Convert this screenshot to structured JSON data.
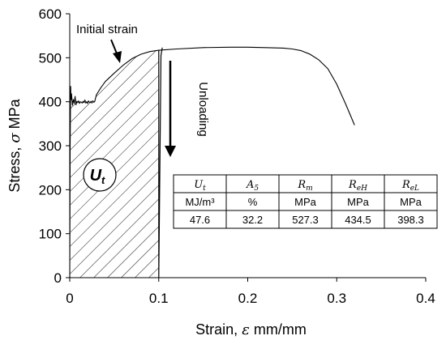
{
  "chart_data": {
    "type": "line",
    "xlabel_prefix": "Strain, ",
    "xlabel_symbol": "ε",
    "xlabel_suffix": " mm/mm",
    "ylabel_prefix": "Stress, ",
    "ylabel_symbol": "σ",
    "ylabel_suffix": " MPa",
    "xlim": [
      0,
      0.4
    ],
    "ylim": [
      0,
      600
    ],
    "xticks": [
      "0",
      "0.1",
      "0.2",
      "0.3",
      "0.4"
    ],
    "yticks": [
      "0",
      "100",
      "200",
      "300",
      "400",
      "500",
      "600"
    ],
    "grid": false,
    "series": [
      {
        "x": [
          0.0,
          0.0005,
          0.001,
          0.0015,
          0.002,
          0.003,
          0.004,
          0.005,
          0.006,
          0.007,
          0.008,
          0.009,
          0.01,
          0.011,
          0.012,
          0.013,
          0.014,
          0.015,
          0.016,
          0.017,
          0.018,
          0.019,
          0.02,
          0.021,
          0.022,
          0.023,
          0.024,
          0.025,
          0.026,
          0.027,
          0.028,
          0.03,
          0.035,
          0.04,
          0.05,
          0.06,
          0.07,
          0.08,
          0.09,
          0.1,
          0.12,
          0.15,
          0.18,
          0.2,
          0.22,
          0.24,
          0.25,
          0.26,
          0.27,
          0.28,
          0.29,
          0.3,
          0.31,
          0.32
        ],
        "y": [
          0,
          300,
          435,
          405,
          418,
          392,
          405,
          396,
          412,
          393,
          401,
          398,
          402,
          396,
          400,
          399,
          397,
          401,
          398,
          404,
          397,
          400,
          396,
          402,
          399,
          398,
          401,
          397,
          402,
          399,
          400,
          416,
          432,
          446,
          465,
          483,
          498,
          508,
          514,
          517,
          520,
          523,
          524,
          524,
          523,
          522,
          520,
          516,
          508,
          495,
          475,
          440,
          395,
          347
        ]
      },
      {
        "x": [
          0.1,
          0.1,
          0.1025,
          0.104
        ],
        "y": [
          517,
          0,
          505,
          523
        ]
      }
    ],
    "shaded_region": {
      "x_range": [
        0,
        0.1
      ],
      "fill": "hatched",
      "label": "U",
      "label_sub": "t"
    },
    "annotations": [
      {
        "text": "Initial strain"
      },
      {
        "text": "Unloading"
      }
    ]
  },
  "table": {
    "headers": [
      {
        "sym": "U",
        "sub": "t"
      },
      {
        "sym": "A",
        "sub": "5"
      },
      {
        "sym": "R",
        "sub": "m"
      },
      {
        "sym": "R",
        "sub": "eH"
      },
      {
        "sym": "R",
        "sub": "eL"
      }
    ],
    "units": [
      "MJ/m³",
      "%",
      "MPa",
      "MPa",
      "MPa"
    ],
    "values": [
      "47.6",
      "32.2",
      "527.3",
      "434.5",
      "398.3"
    ]
  }
}
